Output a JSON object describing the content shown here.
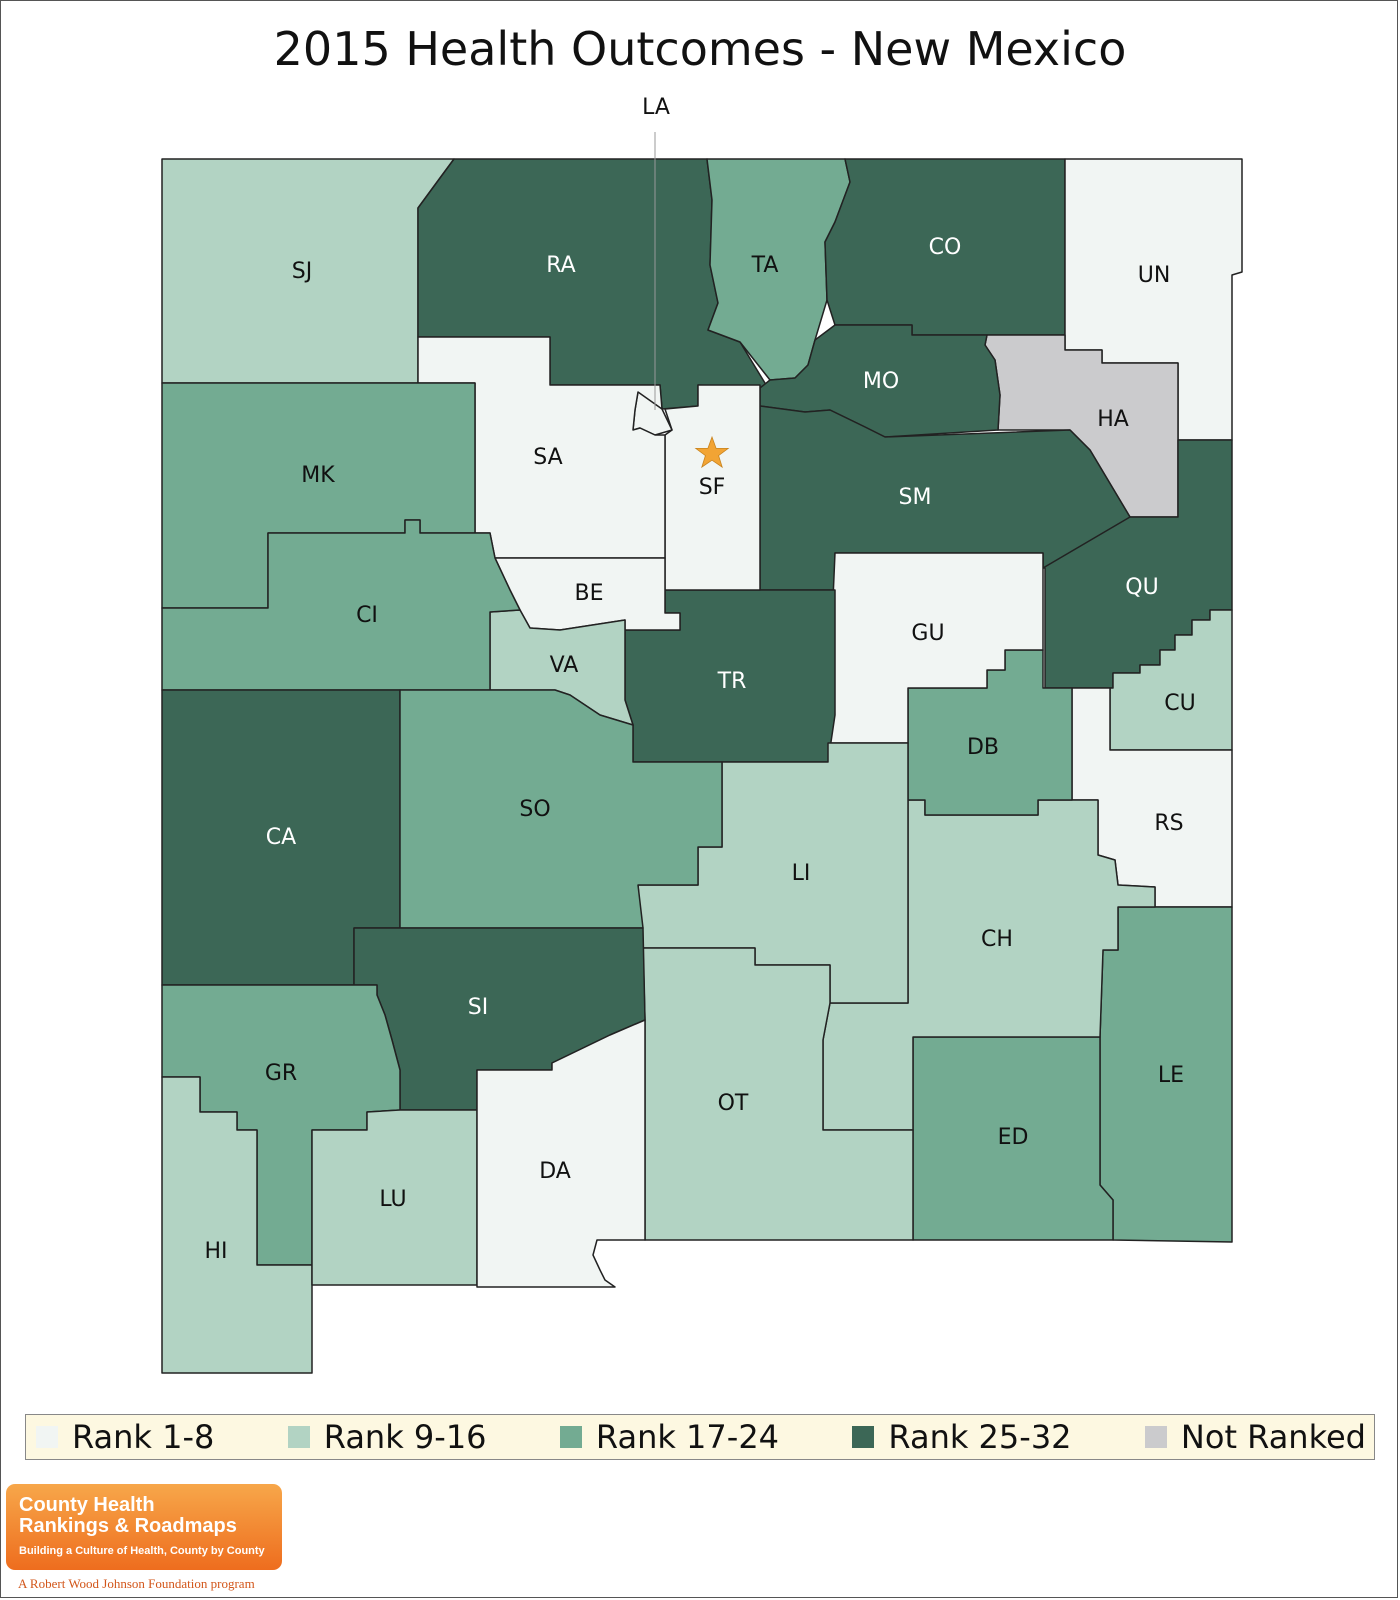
{
  "title": "2015 Health Outcomes - New Mexico",
  "colors": {
    "rank_1_8": "#f1f5f3",
    "rank_9_16": "#b2d3c3",
    "rank_17_24": "#73ab92",
    "rank_25_32": "#3c6756",
    "not_ranked": "#cbcbcd",
    "star": "#f2a434"
  },
  "legend": [
    {
      "label": "Rank 1-8",
      "color": "#f1f5f3"
    },
    {
      "label": "Rank 9-16",
      "color": "#b2d3c3"
    },
    {
      "label": "Rank 17-24",
      "color": "#73ab92"
    },
    {
      "label": "Rank 25-32",
      "color": "#3c6756"
    },
    {
      "label": "Not Ranked",
      "color": "#cbcbcd"
    }
  ],
  "counties": [
    {
      "code": "SJ",
      "rank_group": "9-16"
    },
    {
      "code": "RA",
      "rank_group": "25-32"
    },
    {
      "code": "TA",
      "rank_group": "17-24"
    },
    {
      "code": "CO",
      "rank_group": "25-32"
    },
    {
      "code": "UN",
      "rank_group": "1-8"
    },
    {
      "code": "MK",
      "rank_group": "17-24"
    },
    {
      "code": "SA",
      "rank_group": "1-8"
    },
    {
      "code": "LA",
      "rank_group": "1-8"
    },
    {
      "code": "SF",
      "rank_group": "1-8"
    },
    {
      "code": "MO",
      "rank_group": "25-32"
    },
    {
      "code": "HA",
      "rank_group": "Not Ranked"
    },
    {
      "code": "SM",
      "rank_group": "25-32"
    },
    {
      "code": "CI",
      "rank_group": "17-24"
    },
    {
      "code": "BE",
      "rank_group": "1-8"
    },
    {
      "code": "VA",
      "rank_group": "9-16"
    },
    {
      "code": "TR",
      "rank_group": "25-32"
    },
    {
      "code": "GU",
      "rank_group": "1-8"
    },
    {
      "code": "QU",
      "rank_group": "25-32"
    },
    {
      "code": "CU",
      "rank_group": "9-16"
    },
    {
      "code": "DB",
      "rank_group": "17-24"
    },
    {
      "code": "RS",
      "rank_group": "1-8"
    },
    {
      "code": "CA",
      "rank_group": "25-32"
    },
    {
      "code": "SO",
      "rank_group": "17-24"
    },
    {
      "code": "LI",
      "rank_group": "9-16"
    },
    {
      "code": "CH",
      "rank_group": "9-16"
    },
    {
      "code": "SI",
      "rank_group": "25-32"
    },
    {
      "code": "GR",
      "rank_group": "17-24"
    },
    {
      "code": "LE",
      "rank_group": "17-24"
    },
    {
      "code": "OT",
      "rank_group": "9-16"
    },
    {
      "code": "ED",
      "rank_group": "17-24"
    },
    {
      "code": "DA",
      "rank_group": "1-8"
    },
    {
      "code": "LU",
      "rank_group": "9-16"
    },
    {
      "code": "HI",
      "rank_group": "9-16"
    }
  ],
  "capital_marker": "star",
  "logo": {
    "line1": "County Health",
    "line2": "Rankings & Roadmaps",
    "tagline": "Building a Culture of Health, County by County",
    "sub": "A Robert Wood Johnson Foundation program"
  }
}
